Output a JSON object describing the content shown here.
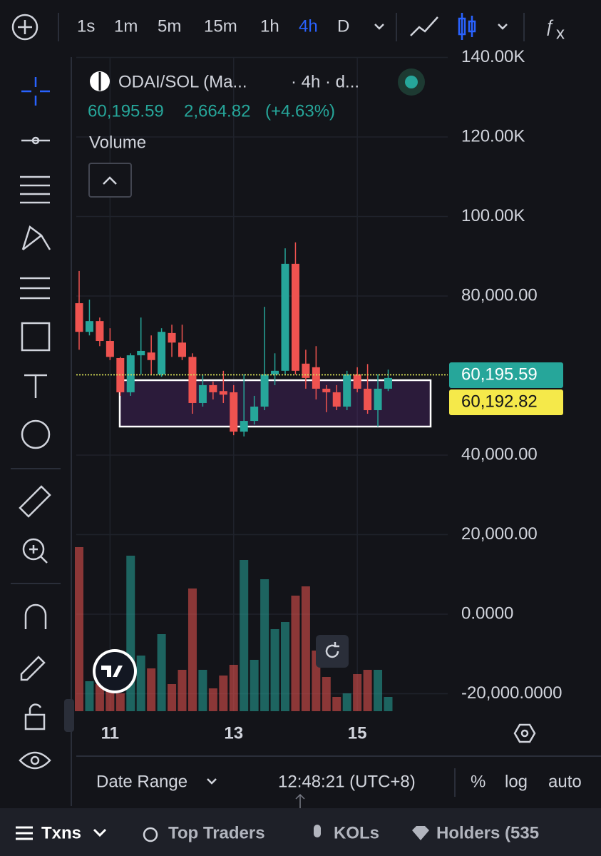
{
  "toolbar": {
    "timeframes": [
      "1s",
      "1m",
      "5m",
      "15m",
      "1h",
      "4h",
      "D"
    ]
  },
  "legend": {
    "symbol": "ODAI/SOL (Ma...",
    "interval": "· 4h · d...",
    "price": "60,195.59",
    "change": "2,664.82",
    "change_pct": "(+4.63%)",
    "volume": "Volume"
  },
  "chart_data": {
    "type": "candlestick",
    "categories": [
      null,
      null,
      null,
      "11",
      null,
      null,
      null,
      null,
      null,
      null,
      null,
      null,
      null,
      null,
      null,
      "13",
      null,
      null,
      null,
      null,
      null,
      null,
      null,
      null,
      null,
      null,
      null,
      "15",
      null,
      null,
      null
    ],
    "open": [
      78200,
      71000,
      73700,
      68700,
      64400,
      55800,
      65100,
      65800,
      60300,
      70700,
      68300,
      64700,
      53100,
      57600,
      56100,
      55800,
      45900,
      48600,
      52200,
      60300,
      61200,
      88100,
      63000,
      62100,
      56700,
      55800,
      52200,
      60300,
      56700,
      51300,
      56700
    ],
    "high": [
      86300,
      79100,
      74600,
      71900,
      64700,
      65600,
      74600,
      70100,
      71900,
      72800,
      72800,
      65600,
      60300,
      58500,
      61200,
      57600,
      60300,
      54900,
      77300,
      65600,
      92000,
      93500,
      66500,
      67400,
      57600,
      57600,
      61200,
      62100,
      62900,
      60300,
      61500
    ],
    "low": [
      66500,
      70100,
      67400,
      63900,
      54900,
      54900,
      60300,
      60300,
      59700,
      64700,
      63900,
      50400,
      52200,
      54000,
      53100,
      45000,
      44700,
      47700,
      51300,
      57600,
      60300,
      60300,
      56700,
      54000,
      50800,
      51300,
      51300,
      55800,
      50400,
      47200,
      56100
    ],
    "close": [
      71000,
      73700,
      68700,
      64700,
      55800,
      65100,
      66200,
      63900,
      71000,
      68300,
      64700,
      53100,
      57600,
      55800,
      55200,
      45900,
      48600,
      52200,
      60300,
      61200,
      88100,
      61200,
      59400,
      56700,
      55800,
      52200,
      60300,
      56700,
      51300,
      56700,
      59400
    ],
    "volume": [
      230,
      42,
      38,
      40,
      25,
      218,
      78,
      60,
      108,
      38,
      58,
      172,
      58,
      32,
      50,
      65,
      212,
      72,
      185,
      115,
      125,
      162,
      175,
      85,
      48,
      20,
      25,
      52,
      58,
      58,
      20
    ],
    "up_color": "#26a69a",
    "down_color": "#ef5350",
    "ylim": [
      -24400,
      140100
    ],
    "yticks": [
      {
        "value": 140000,
        "label": "140.00K"
      },
      {
        "value": 120000,
        "label": "120.00K"
      },
      {
        "value": 100000,
        "label": "100.00K"
      },
      {
        "value": 80000,
        "label": "80,000.00"
      },
      {
        "value": 40000,
        "label": "40,000.00"
      },
      {
        "value": 20000,
        "label": "20,000.00"
      },
      {
        "value": 0,
        "label": "0.0000"
      },
      {
        "value": -20000,
        "label": "-20,000.0000"
      }
    ],
    "price_lines": [
      {
        "value": 60195.59,
        "label": "60,195.59",
        "color": "#26a69a"
      },
      {
        "value": 60192.82,
        "label": "60,192.82",
        "color": "#f5e94a"
      }
    ],
    "grid": true
  },
  "bottom_bar": {
    "date_range": "Date Range",
    "clock": "12:48:21 (UTC+8)",
    "percent": "%",
    "log": "log",
    "auto": "auto"
  },
  "tabs": [
    "Txns",
    "Top Traders",
    "KOLs",
    "Holders (535"
  ]
}
